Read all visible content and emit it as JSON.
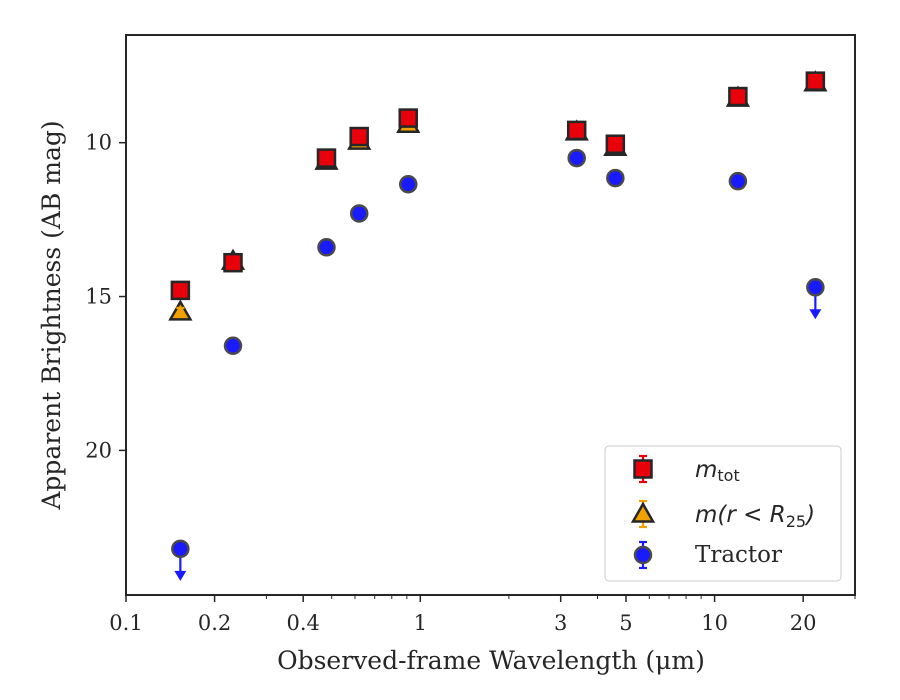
{
  "chart_data": {
    "type": "scatter",
    "xlabel": "Observed-frame Wavelength (μm)",
    "ylabel": "Apparent Brightness (AB mag)",
    "xscale": "log",
    "xlim": [
      0.1,
      30
    ],
    "ylim": [
      24.7,
      6.5
    ],
    "y_inverted": true,
    "x_ticks": [
      0.1,
      0.2,
      0.4,
      1,
      3,
      5,
      10,
      20
    ],
    "x_tick_labels": [
      "0.1",
      "0.2",
      "0.4",
      "1",
      "3",
      "5",
      "10",
      "20"
    ],
    "y_ticks": [
      10,
      15,
      20
    ],
    "y_tick_labels": [
      "10",
      "15",
      "20"
    ],
    "grid": false,
    "legend_position": "lower-right",
    "series": [
      {
        "name": "m_tot",
        "marker": "square",
        "color": "#e8000b",
        "points": [
          {
            "x": 0.153,
            "y": 14.8
          },
          {
            "x": 0.231,
            "y": 13.9
          },
          {
            "x": 0.48,
            "y": 10.5
          },
          {
            "x": 0.62,
            "y": 9.8
          },
          {
            "x": 0.91,
            "y": 9.2
          },
          {
            "x": 3.4,
            "y": 9.6
          },
          {
            "x": 4.6,
            "y": 10.05
          },
          {
            "x": 12.0,
            "y": 8.5
          },
          {
            "x": 22.0,
            "y": 8.0
          }
        ]
      },
      {
        "name": "m(r < R25)",
        "marker": "triangle",
        "color": "#f0a000",
        "points": [
          {
            "x": 0.153,
            "y": 15.5
          },
          {
            "x": 0.231,
            "y": 13.85
          },
          {
            "x": 0.48,
            "y": 10.6
          },
          {
            "x": 0.62,
            "y": 9.95
          },
          {
            "x": 0.91,
            "y": 9.4
          },
          {
            "x": 3.4,
            "y": 9.65
          },
          {
            "x": 4.6,
            "y": 10.15
          },
          {
            "x": 12.0,
            "y": 8.55
          },
          {
            "x": 22.0,
            "y": 8.05
          }
        ]
      },
      {
        "name": "Tractor",
        "marker": "circle",
        "color": "#1a1aff",
        "points": [
          {
            "x": 0.153,
            "y": 23.2,
            "upper_limit": true
          },
          {
            "x": 0.231,
            "y": 16.6
          },
          {
            "x": 0.48,
            "y": 13.4
          },
          {
            "x": 0.62,
            "y": 12.3
          },
          {
            "x": 0.91,
            "y": 11.35
          },
          {
            "x": 3.4,
            "y": 10.5
          },
          {
            "x": 4.6,
            "y": 11.15
          },
          {
            "x": 12.0,
            "y": 11.25
          },
          {
            "x": 22.0,
            "y": 14.7,
            "upper_limit": true
          }
        ]
      }
    ]
  },
  "legend": {
    "m_tot_base": "m",
    "m_tot_sub": "tot",
    "m_r_base": "m(r < R",
    "m_r_sub": "25",
    "m_r_close": ")",
    "tractor": "Tractor"
  }
}
